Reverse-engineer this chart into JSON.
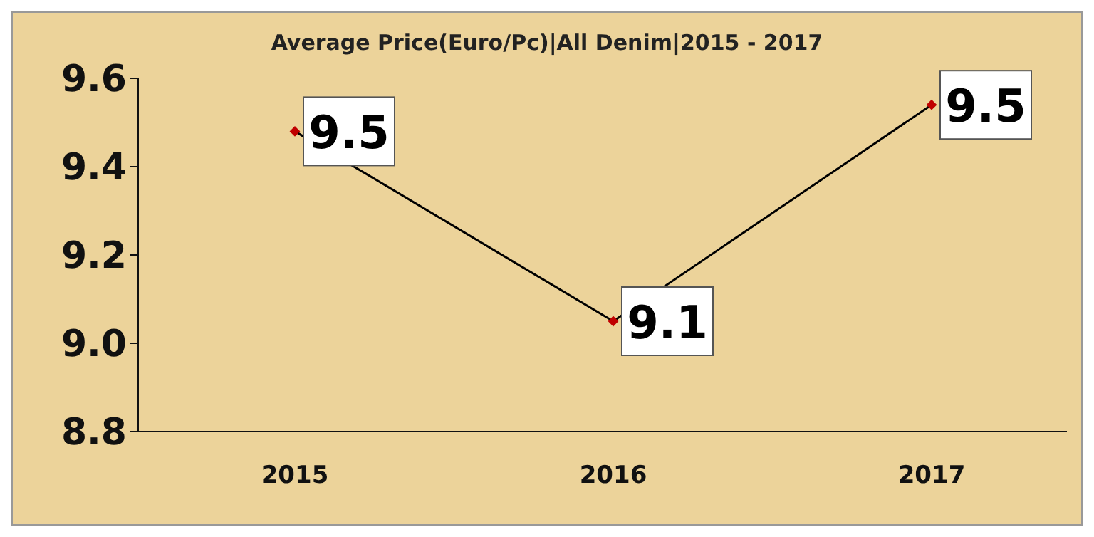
{
  "chart_data": {
    "type": "line",
    "title": "Average Price(Euro/Pc)|All Denim|2015 - 2017",
    "categories": [
      "2015",
      "2016",
      "2017"
    ],
    "series": [
      {
        "color": "#000000",
        "values": [
          9.48,
          9.05,
          9.54
        ],
        "value_labels": [
          "9.5",
          "9.1",
          "9.5"
        ]
      }
    ],
    "ylim": [
      8.8,
      9.6
    ],
    "yticks": [
      {
        "value": 8.8,
        "label": "8.8"
      },
      {
        "value": 9.0,
        "label": "9.0"
      },
      {
        "value": 9.2,
        "label": "9.2"
      },
      {
        "value": 9.4,
        "label": "9.4"
      },
      {
        "value": 9.6,
        "label": "9.6"
      }
    ],
    "grid": false,
    "marker": "diamond",
    "line_style": "solid"
  }
}
